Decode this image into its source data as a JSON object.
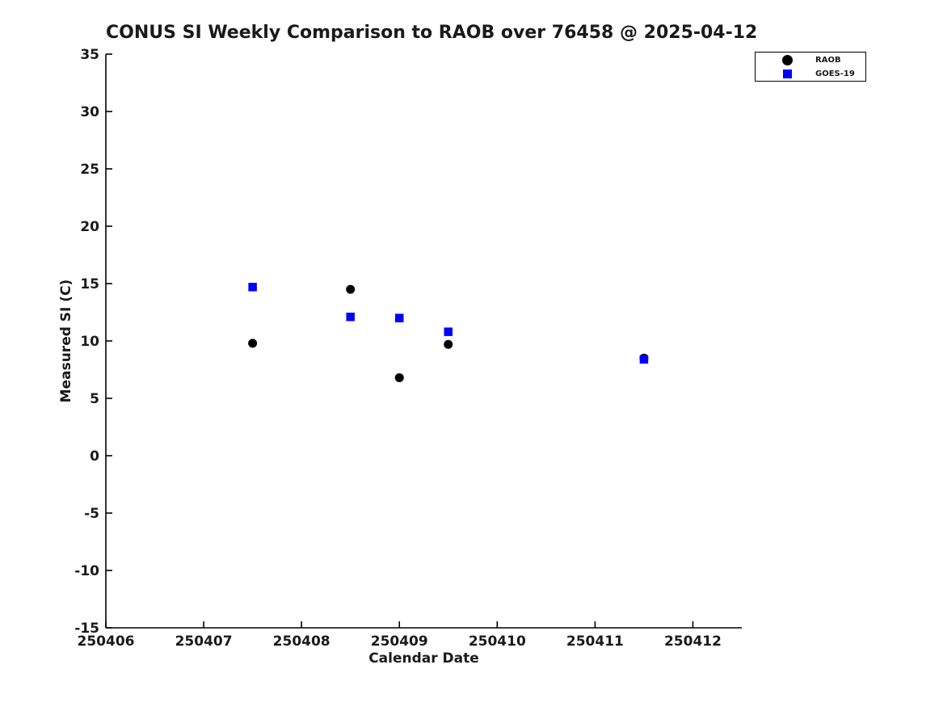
{
  "title": "CONUS SI Weekly Comparison to RAOB over 76458 @ 2025-04-12",
  "colors": {
    "background": "#ffffff",
    "axis": "#000000",
    "text": "#1a1a1a",
    "raob": "#000000",
    "goes19": "#0000ff"
  },
  "chart_data": {
    "type": "scatter",
    "title": "CONUS SI Weekly Comparison to RAOB over 76458 @ 2025-04-12",
    "xlabel": "Calendar Date",
    "ylabel": "Measured SI (C)",
    "xlim": [
      250406,
      250412.5
    ],
    "ylim": [
      -15,
      35
    ],
    "xticks": [
      250406,
      250407,
      250408,
      250409,
      250410,
      250411,
      250412
    ],
    "yticks": [
      -15,
      -10,
      -5,
      0,
      5,
      10,
      15,
      20,
      25,
      30,
      35
    ],
    "grid": false,
    "legend_position": "upper right, outside plot top-right corner",
    "series": [
      {
        "name": "RAOB",
        "marker": "circle",
        "color": "#000000",
        "points": [
          {
            "x": 250407.5,
            "y": 9.8
          },
          {
            "x": 250408.5,
            "y": 14.5
          },
          {
            "x": 250409.0,
            "y": 6.8
          },
          {
            "x": 250409.5,
            "y": 9.7
          },
          {
            "x": 250411.5,
            "y": 8.5
          }
        ]
      },
      {
        "name": "GOES-19",
        "marker": "square",
        "color": "#0000ff",
        "points": [
          {
            "x": 250407.5,
            "y": 14.7
          },
          {
            "x": 250408.5,
            "y": 12.1
          },
          {
            "x": 250409.0,
            "y": 12.0
          },
          {
            "x": 250409.5,
            "y": 10.8
          },
          {
            "x": 250411.5,
            "y": 8.4
          }
        ]
      }
    ]
  }
}
